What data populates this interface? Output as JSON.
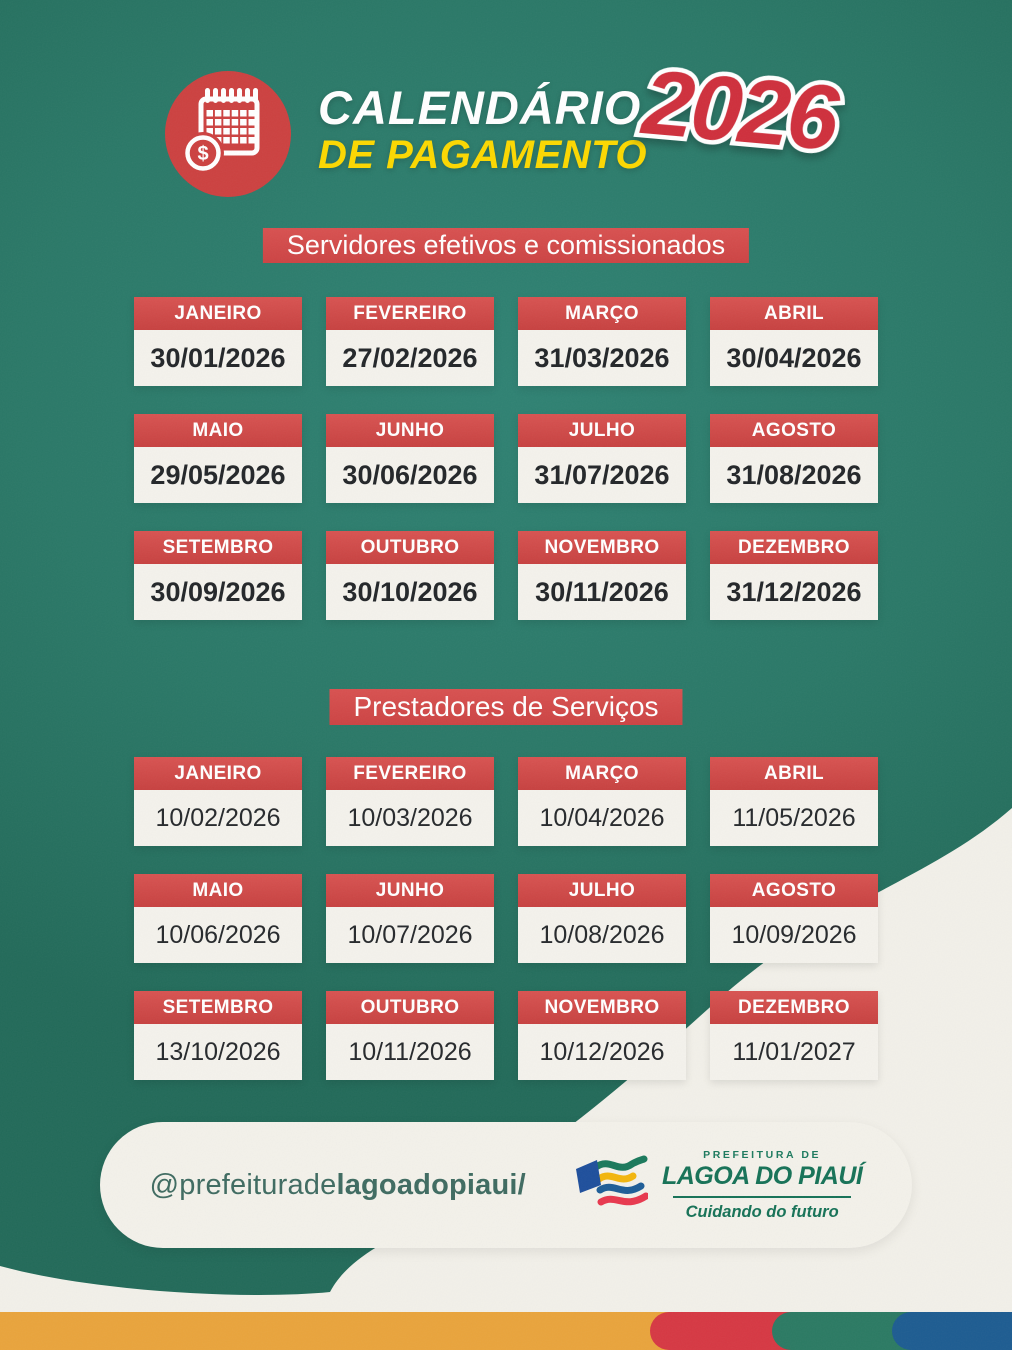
{
  "header": {
    "title_line1": "CALENDÁRIO",
    "title_line2": "DE PAGAMENTO",
    "year": "2026",
    "icon": "calendar-dollar-icon"
  },
  "sections": [
    {
      "title": "Servidores efetivos e comissionados",
      "months": [
        {
          "month": "JANEIRO",
          "date": "30/01/2026"
        },
        {
          "month": "FEVEREIRO",
          "date": "27/02/2026"
        },
        {
          "month": "MARÇO",
          "date": "31/03/2026"
        },
        {
          "month": "ABRIL",
          "date": "30/04/2026"
        },
        {
          "month": "MAIO",
          "date": "29/05/2026"
        },
        {
          "month": "JUNHO",
          "date": "30/06/2026"
        },
        {
          "month": "JULHO",
          "date": "31/07/2026"
        },
        {
          "month": "AGOSTO",
          "date": "31/08/2026"
        },
        {
          "month": "SETEMBRO",
          "date": "30/09/2026"
        },
        {
          "month": "OUTUBRO",
          "date": "30/10/2026"
        },
        {
          "month": "NOVEMBRO",
          "date": "30/11/2026"
        },
        {
          "month": "DEZEMBRO",
          "date": "31/12/2026"
        }
      ]
    },
    {
      "title": "Prestadores de Serviços",
      "months": [
        {
          "month": "JANEIRO",
          "date": "10/02/2026"
        },
        {
          "month": "FEVEREIRO",
          "date": "10/03/2026"
        },
        {
          "month": "MARÇO",
          "date": "10/04/2026"
        },
        {
          "month": "ABRIL",
          "date": "11/05/2026"
        },
        {
          "month": "MAIO",
          "date": "10/06/2026"
        },
        {
          "month": "JUNHO",
          "date": "10/07/2026"
        },
        {
          "month": "JULHO",
          "date": "10/08/2026"
        },
        {
          "month": "AGOSTO",
          "date": "10/09/2026"
        },
        {
          "month": "SETEMBRO",
          "date": "13/10/2026"
        },
        {
          "month": "OUTUBRO",
          "date": "10/11/2026"
        },
        {
          "month": "NOVEMBRO",
          "date": "10/12/2026"
        },
        {
          "month": "DEZEMBRO",
          "date": "11/01/2027"
        }
      ]
    }
  ],
  "footer": {
    "handle_prefix": "@prefeiturade",
    "handle_bold": "lagoadopiaui/",
    "logo": {
      "overline": "PREFEITURA DE",
      "name": "LAGOA DO PIAUÍ",
      "slogan": "Cuidando do futuro"
    }
  },
  "colors": {
    "background_teal": "#2a7867",
    "accent_red": "#d14544",
    "year_red": "#cf2f3c",
    "title_yellow": "#fcd800",
    "card_white": "#f4f2ec",
    "date_text": "#232629",
    "swoosh_white": "#f2f0e9",
    "stripe_orange": "#e9a43c",
    "stripe_red": "#d63843",
    "stripe_green": "#2b7a63",
    "stripe_blue": "#1d5c91",
    "logo_green": "#167257",
    "flag_blue": "#1e4f9c",
    "flag_yellow": "#f3b60d",
    "flag_red": "#e8384e"
  }
}
